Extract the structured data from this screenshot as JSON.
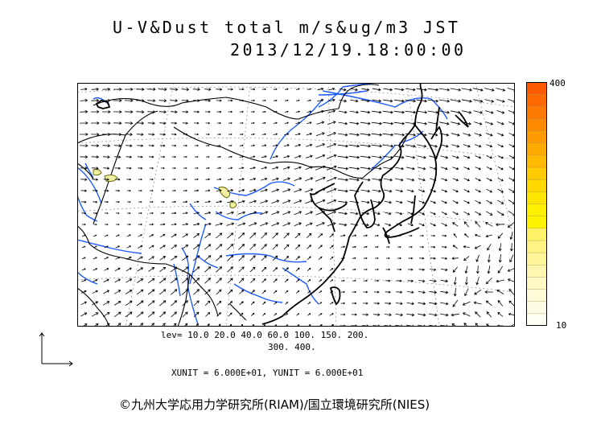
{
  "title": {
    "line1": "U-V&Dust total m/s&ug/m3 JST",
    "line2": "2013/12/19.18:00:00"
  },
  "colorbar": {
    "max_label": "400",
    "min_label": "10",
    "colors": [
      "#ff5a00",
      "#ff6a00",
      "#ff7a00",
      "#ff8a00",
      "#ff9a00",
      "#ffaa00",
      "#ffba00",
      "#ffca00",
      "#ffd800",
      "#ffe600",
      "#fff000",
      "#fff400",
      "#fff36a",
      "#fff383",
      "#fff59a",
      "#fff7b0",
      "#fff9c4",
      "#fffbd6",
      "#fffce6",
      "#fffef2"
    ]
  },
  "levels": {
    "line1": "lev= 10.0 20.0 40.0 60.0 100. 150. 200.",
    "line2": "300. 400."
  },
  "units": "XUNIT = 6.000E+01, YUNIT = 6.000E+01",
  "copyright": "©九州大学応用力学研究所(RIAM)/国立環境研究所(NIES)"
}
